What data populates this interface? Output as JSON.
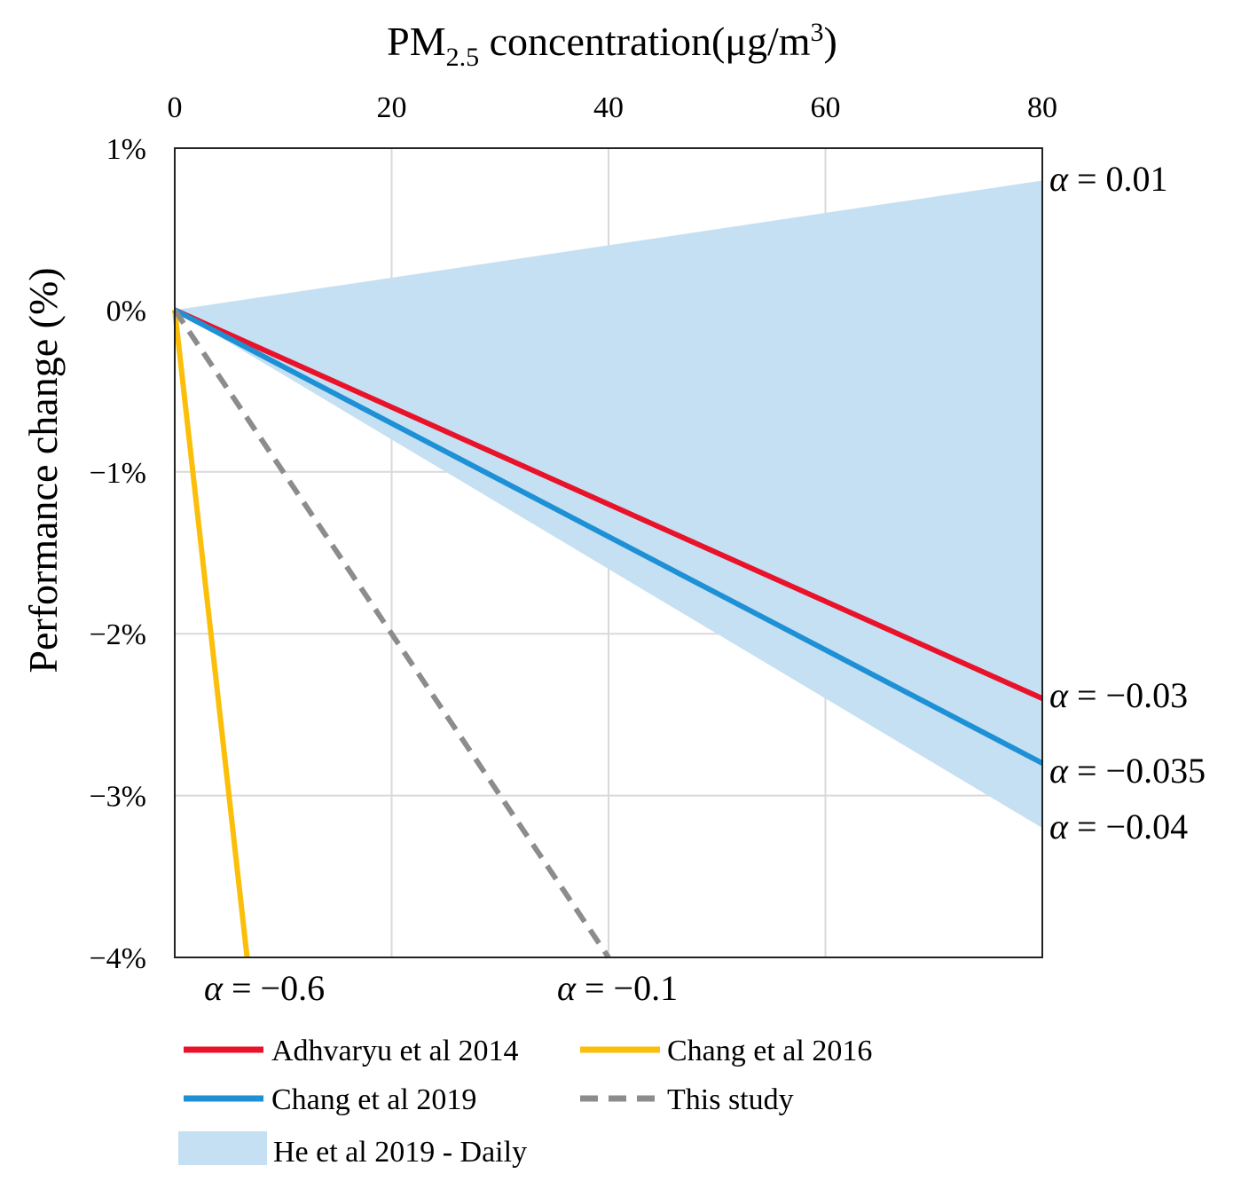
{
  "chart_data": {
    "type": "line",
    "title": {
      "prefix": "PM",
      "subscript": "2.5",
      "middle": " concentration(μg/m",
      "superscript": "3",
      "suffix": ")"
    },
    "xlabel_position": "top",
    "ylabel": "Performance change (%)",
    "xlim": [
      0,
      80
    ],
    "ylim": [
      -4,
      1
    ],
    "x_ticks": [
      0,
      20,
      40,
      60,
      80
    ],
    "x_tick_labels": [
      "0",
      "20",
      "40",
      "60",
      "80"
    ],
    "y_ticks": [
      1,
      0,
      -1,
      -2,
      -3,
      -4
    ],
    "y_tick_labels": [
      "1%",
      "0%",
      "−1%",
      "−2%",
      "−3%",
      "−4%"
    ],
    "grid": true,
    "band": {
      "name": "He et al 2019 - Daily",
      "color": "#c5e0f2",
      "points_upper": [
        [
          0,
          0
        ],
        [
          80,
          0.8
        ]
      ],
      "points_lower": [
        [
          0,
          0
        ],
        [
          80,
          -3.2
        ]
      ]
    },
    "series": [
      {
        "name": "Adhvaryu et al 2014",
        "color": "#e8132a",
        "dash": false,
        "x": [
          0,
          80
        ],
        "y": [
          0,
          -2.4
        ]
      },
      {
        "name": "Chang et al 2019",
        "color": "#1e90d6",
        "dash": false,
        "x": [
          0,
          80
        ],
        "y": [
          0,
          -2.8
        ]
      },
      {
        "name": "Chang et al 2016",
        "color": "#fbbf0a",
        "dash": false,
        "x": [
          0,
          6.67
        ],
        "y": [
          0,
          -4.0
        ]
      },
      {
        "name": "This study",
        "color": "#8c8c8c",
        "dash": true,
        "x": [
          0,
          40
        ],
        "y": [
          0,
          -4.0
        ]
      }
    ],
    "annotations": [
      {
        "greek": "α",
        "text": " = 0.01"
      },
      {
        "greek": "α",
        "text": " = −0.03"
      },
      {
        "greek": "α",
        "text": " = −0.035"
      },
      {
        "greek": "α",
        "text": " = −0.04"
      },
      {
        "greek": "α",
        "text": " = −0.6"
      },
      {
        "greek": "α",
        "text": " = −0.1"
      }
    ],
    "legend": {
      "placement": "bottom",
      "items": [
        {
          "label": "Adhvaryu et al 2014",
          "kind": "line",
          "color": "#e8132a"
        },
        {
          "label": "Chang et al 2016",
          "kind": "line",
          "color": "#fbbf0a"
        },
        {
          "label": "Chang et al 2019",
          "kind": "line",
          "color": "#1e90d6"
        },
        {
          "label": "This study",
          "kind": "dash",
          "color": "#8c8c8c"
        },
        {
          "label": "He et al 2019 - Daily",
          "kind": "patch",
          "color": "#c5e0f2"
        }
      ]
    }
  }
}
